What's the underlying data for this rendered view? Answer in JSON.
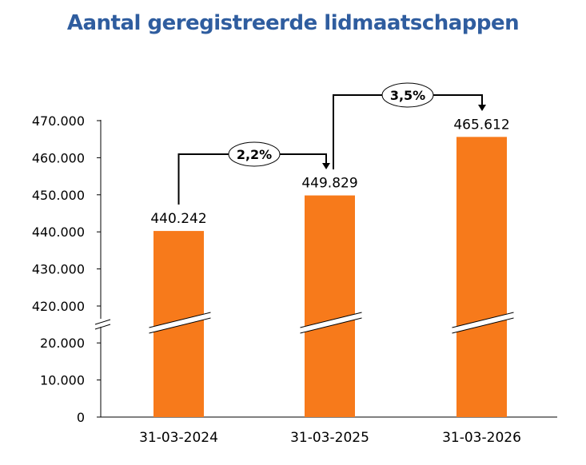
{
  "chart_data": {
    "type": "bar",
    "title": "Aantal geregistreerde lidmaatschappen",
    "categories": [
      "31-03-2024",
      "31-03-2025",
      "31-03-2026"
    ],
    "values": [
      440242,
      449829,
      465612
    ],
    "value_labels": [
      "440.242",
      "449.829",
      "465.612"
    ],
    "y_axis_break": {
      "lower_range": [
        0,
        20000
      ],
      "upper_range": [
        420000,
        470000
      ]
    },
    "y_ticks_lower": [
      "0",
      "10.000",
      "20.000"
    ],
    "y_ticks_upper": [
      "420.000",
      "430.000",
      "440.000",
      "450.000",
      "460.000",
      "470.000"
    ],
    "growth_annotations": [
      {
        "from": "31-03-2024",
        "to": "31-03-2025",
        "label": "2,2%"
      },
      {
        "from": "31-03-2025",
        "to": "31-03-2026",
        "label": "3,5%"
      }
    ],
    "grid": false,
    "legend": "none",
    "bar_color": "#f77a1b",
    "title_color": "#2f5d9f"
  }
}
